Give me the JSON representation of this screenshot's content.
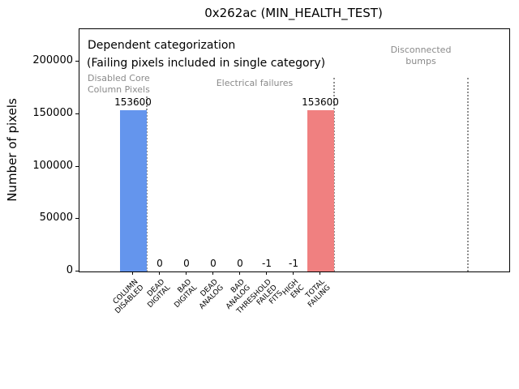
{
  "title": "0x262ac (MIN_HEALTH_TEST)",
  "ylabel": "Number of pixels",
  "annotations": {
    "dependent_line1": "Dependent categorization",
    "dependent_line2": "(Failing pixels included in single category)",
    "region_disabled": "Disabled Core\nColumn Pixels",
    "region_electrical": "Electrical failures",
    "region_disconnected": "Disconnected\nbumps"
  },
  "colors": {
    "disabled_bar": "#6495ed",
    "electrical_bar": "#808080",
    "total_bar": "#f08080",
    "separator_line": "#8f8f8f",
    "region_label_text": "#8a8a8a",
    "axis_text": "#000000"
  },
  "chart_data": {
    "type": "bar",
    "title": "0x262ac (MIN_HEALTH_TEST)",
    "xlabel": "",
    "ylabel": "Number of pixels",
    "categories": [
      [
        "COLUMN",
        "DISABLED"
      ],
      [
        "DEAD",
        "DIGITAL"
      ],
      [
        "BAD",
        "DIGITAL"
      ],
      [
        "DEAD",
        "ANALOG"
      ],
      [
        "BAD",
        "ANALOG"
      ],
      [
        "THRESHOLD",
        "FAILED",
        "FITS"
      ],
      [
        "HIGH",
        "ENC"
      ],
      [
        "TOTAL",
        "FAILING"
      ]
    ],
    "values": [
      153600,
      0,
      0,
      0,
      0,
      -1,
      -1,
      153600
    ],
    "value_labels": [
      "153600",
      "0",
      "0",
      "0",
      "0",
      "-1",
      "-1",
      "153600"
    ],
    "bar_colors": [
      "#6495ed",
      "#808080",
      "#808080",
      "#808080",
      "#808080",
      "#808080",
      "#808080",
      "#f08080"
    ],
    "bar_width": 1.0,
    "yticks": [
      0,
      50000,
      100000,
      150000,
      200000
    ],
    "ylim": [
      0,
      231200
    ],
    "xlim": [
      -2,
      14.06
    ],
    "grid": false,
    "legend": false,
    "separators": [
      {
        "x": 0.5,
        "top": 167000
      },
      {
        "x": 7.5,
        "top": 185000
      },
      {
        "x": 12.5,
        "top": 185000
      }
    ],
    "region_labels": [
      "Disabled Core Column Pixels",
      "Electrical failures",
      "Disconnected bumps"
    ]
  }
}
